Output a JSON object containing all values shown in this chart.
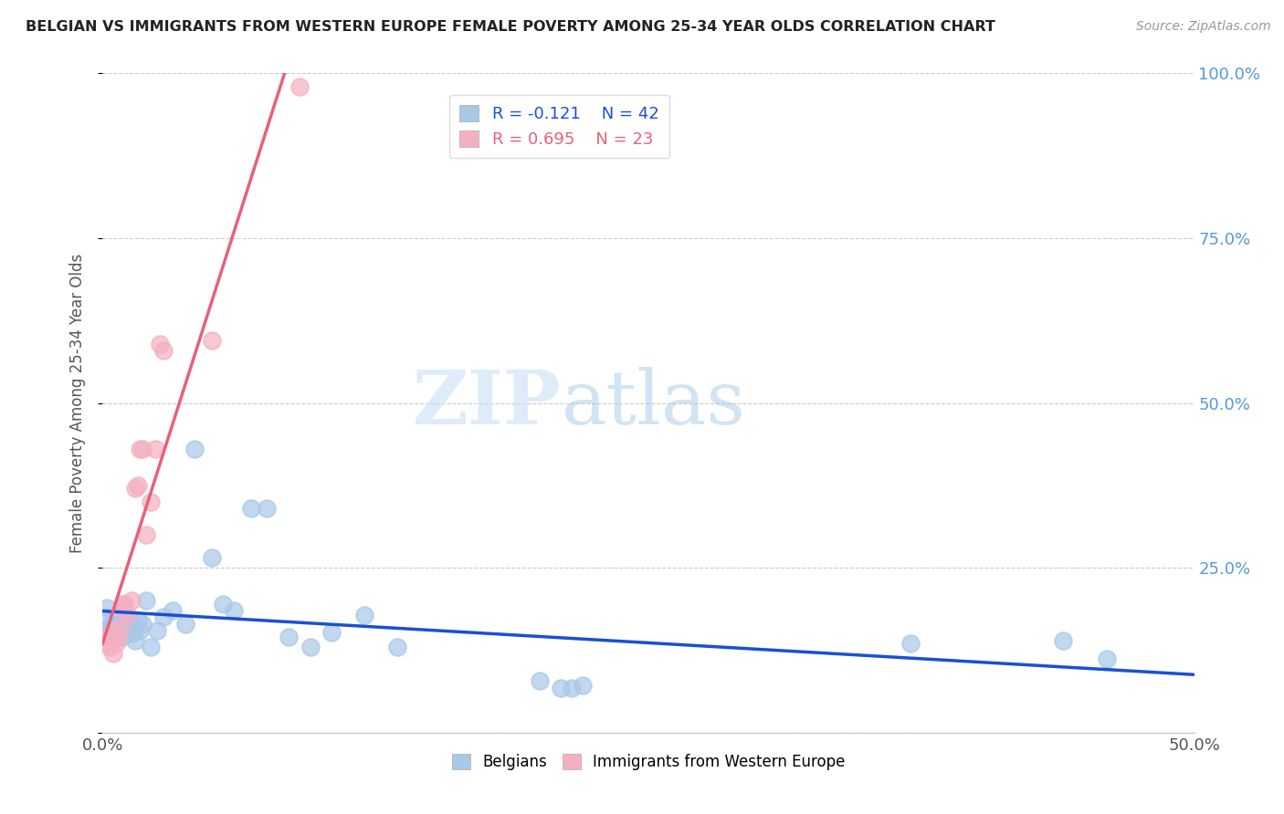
{
  "title": "BELGIAN VS IMMIGRANTS FROM WESTERN EUROPE FEMALE POVERTY AMONG 25-34 YEAR OLDS CORRELATION CHART",
  "source": "Source: ZipAtlas.com",
  "ylabel": "Female Poverty Among 25-34 Year Olds",
  "xlim": [
    0,
    0.5
  ],
  "ylim": [
    0,
    1.0
  ],
  "belgians_x": [
    0.001,
    0.002,
    0.003,
    0.004,
    0.005,
    0.006,
    0.007,
    0.008,
    0.009,
    0.01,
    0.011,
    0.012,
    0.013,
    0.014,
    0.015,
    0.016,
    0.017,
    0.018,
    0.02,
    0.022,
    0.025,
    0.028,
    0.032,
    0.038,
    0.042,
    0.05,
    0.055,
    0.06,
    0.068,
    0.075,
    0.085,
    0.095,
    0.105,
    0.12,
    0.135,
    0.2,
    0.21,
    0.215,
    0.22,
    0.37,
    0.44,
    0.46
  ],
  "belgians_y": [
    0.175,
    0.19,
    0.16,
    0.155,
    0.17,
    0.15,
    0.165,
    0.155,
    0.145,
    0.185,
    0.16,
    0.175,
    0.15,
    0.16,
    0.14,
    0.17,
    0.155,
    0.165,
    0.2,
    0.13,
    0.155,
    0.175,
    0.185,
    0.165,
    0.43,
    0.265,
    0.195,
    0.185,
    0.34,
    0.34,
    0.145,
    0.13,
    0.152,
    0.178,
    0.13,
    0.078,
    0.068,
    0.068,
    0.072,
    0.135,
    0.14,
    0.112
  ],
  "immigrants_x": [
    0.001,
    0.002,
    0.003,
    0.004,
    0.005,
    0.006,
    0.007,
    0.008,
    0.009,
    0.01,
    0.011,
    0.013,
    0.015,
    0.016,
    0.017,
    0.018,
    0.02,
    0.022,
    0.024,
    0.026,
    0.028,
    0.05,
    0.09
  ],
  "immigrants_y": [
    0.135,
    0.145,
    0.13,
    0.15,
    0.12,
    0.135,
    0.145,
    0.16,
    0.195,
    0.195,
    0.18,
    0.2,
    0.37,
    0.375,
    0.43,
    0.43,
    0.3,
    0.35,
    0.43,
    0.59,
    0.58,
    0.595,
    0.98
  ],
  "belgian_color": "#a8c8e8",
  "immigrant_color": "#f4b0c0",
  "belgian_line_color": "#1a4fd6",
  "immigrant_line_color": "#e8607a",
  "belgian_R": -0.121,
  "belgian_N": 42,
  "immigrant_R": 0.695,
  "immigrant_N": 23,
  "watermark_zip": "ZIP",
  "watermark_atlas": "atlas",
  "right_tick_color": "#5599dd"
}
